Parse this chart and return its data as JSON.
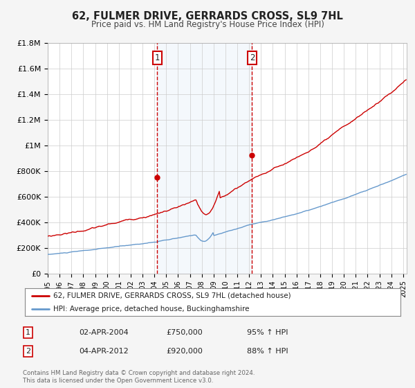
{
  "title": "62, FULMER DRIVE, GERRARDS CROSS, SL9 7HL",
  "subtitle": "Price paid vs. HM Land Registry's House Price Index (HPI)",
  "ylim": [
    0,
    1800000
  ],
  "xlim_start": 1995.0,
  "xlim_end": 2025.3,
  "ytick_labels": [
    "£0",
    "£200K",
    "£400K",
    "£600K",
    "£800K",
    "£1M",
    "£1.2M",
    "£1.4M",
    "£1.6M",
    "£1.8M"
  ],
  "ytick_values": [
    0,
    200000,
    400000,
    600000,
    800000,
    1000000,
    1200000,
    1400000,
    1600000,
    1800000
  ],
  "marker1_x": 2004.25,
  "marker1_y": 750000,
  "marker1_label": "1",
  "marker1_date": "02-APR-2004",
  "marker1_price": "£750,000",
  "marker1_hpi": "95% ↑ HPI",
  "marker2_x": 2012.25,
  "marker2_y": 920000,
  "marker2_label": "2",
  "marker2_date": "04-APR-2012",
  "marker2_price": "£920,000",
  "marker2_hpi": "88% ↑ HPI",
  "house_color": "#cc0000",
  "hpi_color": "#6699cc",
  "shade_color": "#ddeeff",
  "legend_label_house": "62, FULMER DRIVE, GERRARDS CROSS, SL9 7HL (detached house)",
  "legend_label_hpi": "HPI: Average price, detached house, Buckinghamshire",
  "footnote1": "Contains HM Land Registry data © Crown copyright and database right 2024.",
  "footnote2": "This data is licensed under the Open Government Licence v3.0.",
  "background_color": "#f5f5f5",
  "plot_background": "#ffffff"
}
